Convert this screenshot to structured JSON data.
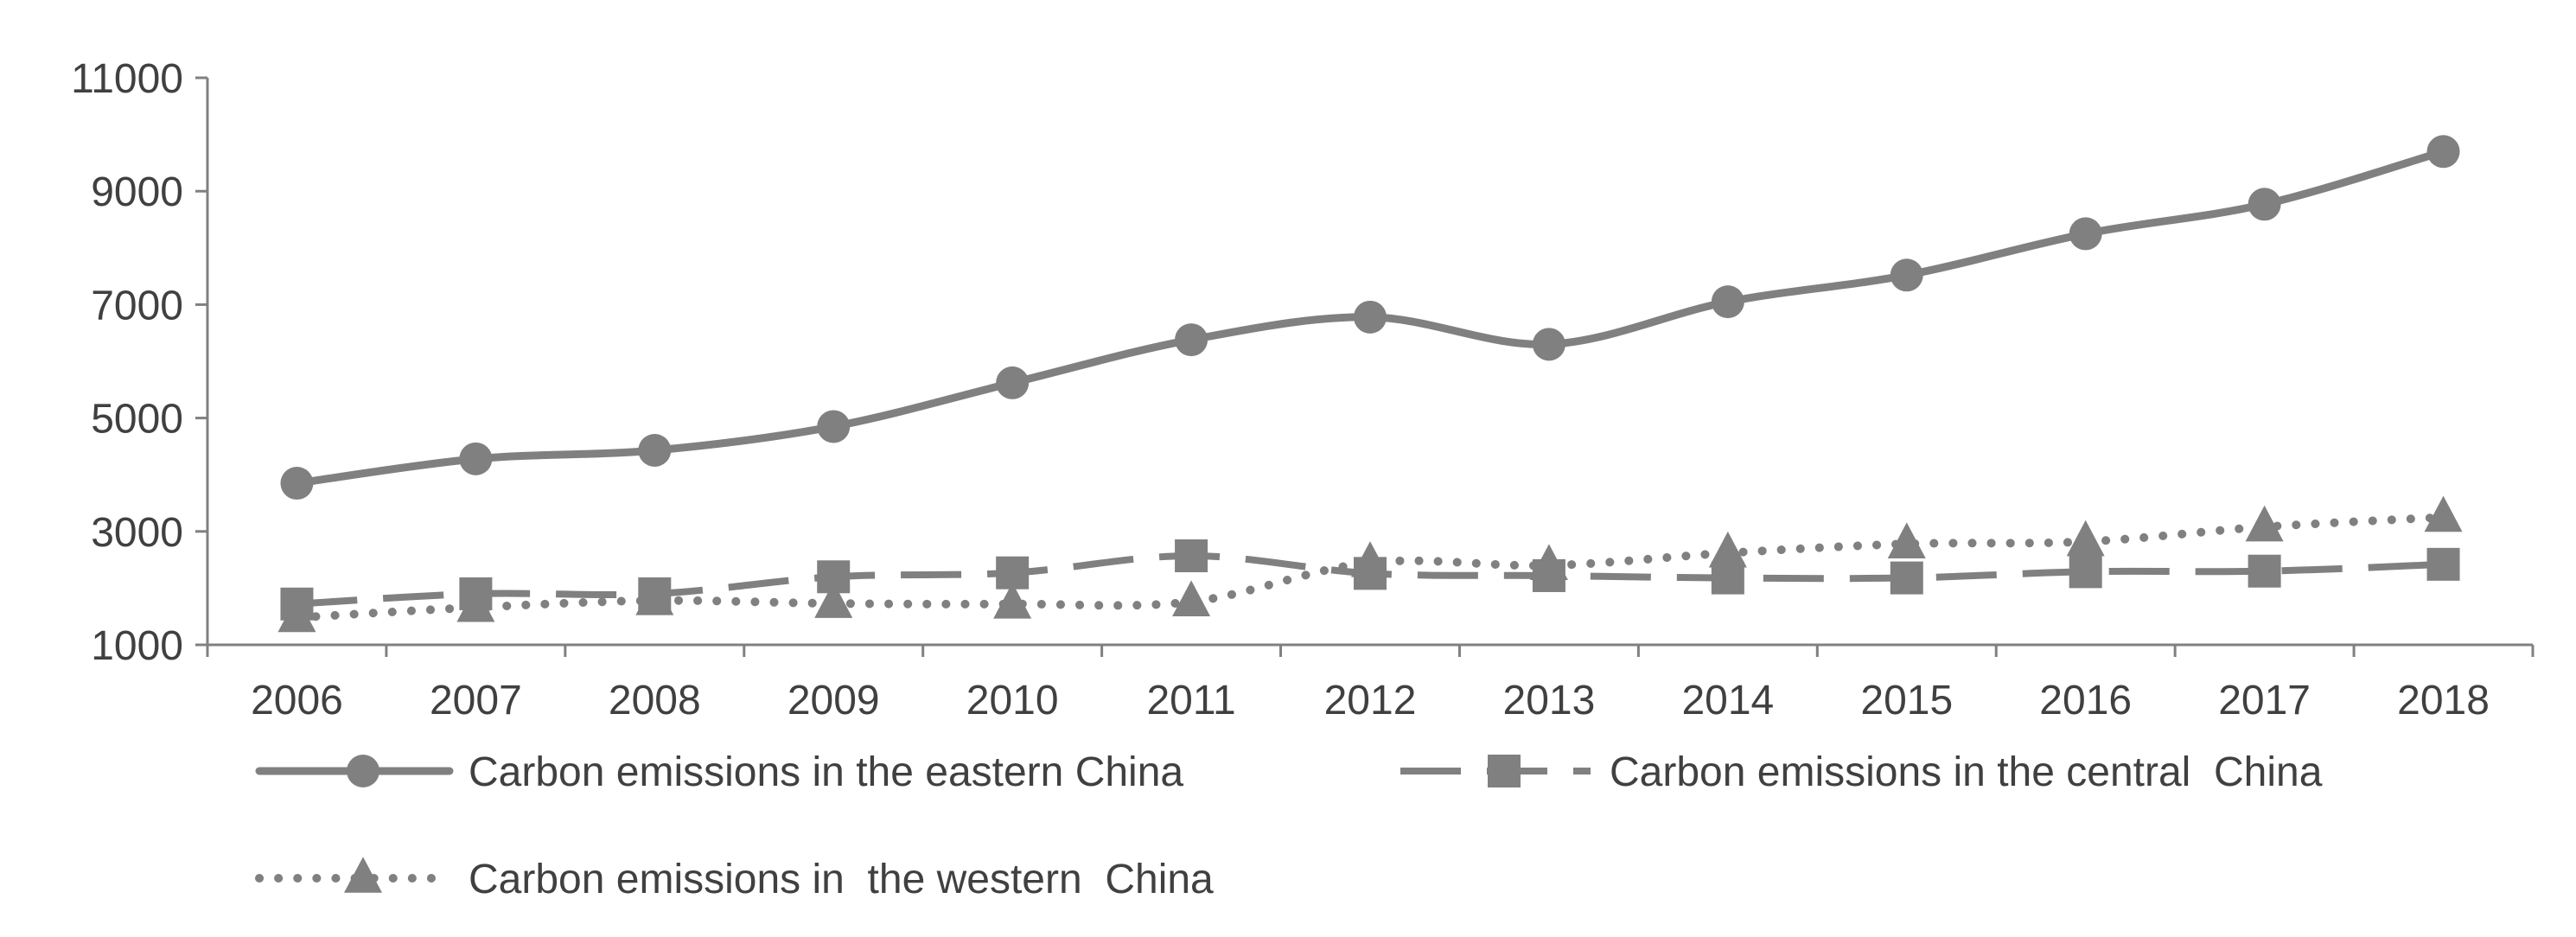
{
  "chart_data": {
    "type": "line",
    "title": "",
    "xlabel": "",
    "ylabel": "",
    "categories": [
      "2006",
      "2007",
      "2008",
      "2009",
      "2010",
      "2011",
      "2012",
      "2013",
      "2014",
      "2015",
      "2016",
      "2017",
      "2018"
    ],
    "ylim": [
      1000,
      11000
    ],
    "yticks": [
      1000,
      3000,
      5000,
      7000,
      9000,
      11000
    ],
    "grid": false,
    "legend": "bottom",
    "series": [
      {
        "name": "Carbon emissions in the eastern China",
        "style": "solid",
        "marker": "circle",
        "color": "#808080",
        "values": [
          3850,
          4280,
          4430,
          4850,
          5620,
          6380,
          6780,
          6300,
          7050,
          7520,
          8250,
          8770,
          9700
        ]
      },
      {
        "name": "Carbon emissions in the central  China",
        "style": "dashed",
        "marker": "square",
        "color": "#808080",
        "values": [
          1720,
          1900,
          1900,
          2200,
          2270,
          2570,
          2260,
          2220,
          2180,
          2180,
          2290,
          2300,
          2420
        ]
      },
      {
        "name": "Carbon emissions in  the western  China",
        "style": "dotted",
        "marker": "triangle",
        "color": "#808080",
        "values": [
          1480,
          1660,
          1780,
          1730,
          1720,
          1760,
          2450,
          2400,
          2620,
          2780,
          2820,
          3080,
          3250
        ]
      }
    ]
  }
}
